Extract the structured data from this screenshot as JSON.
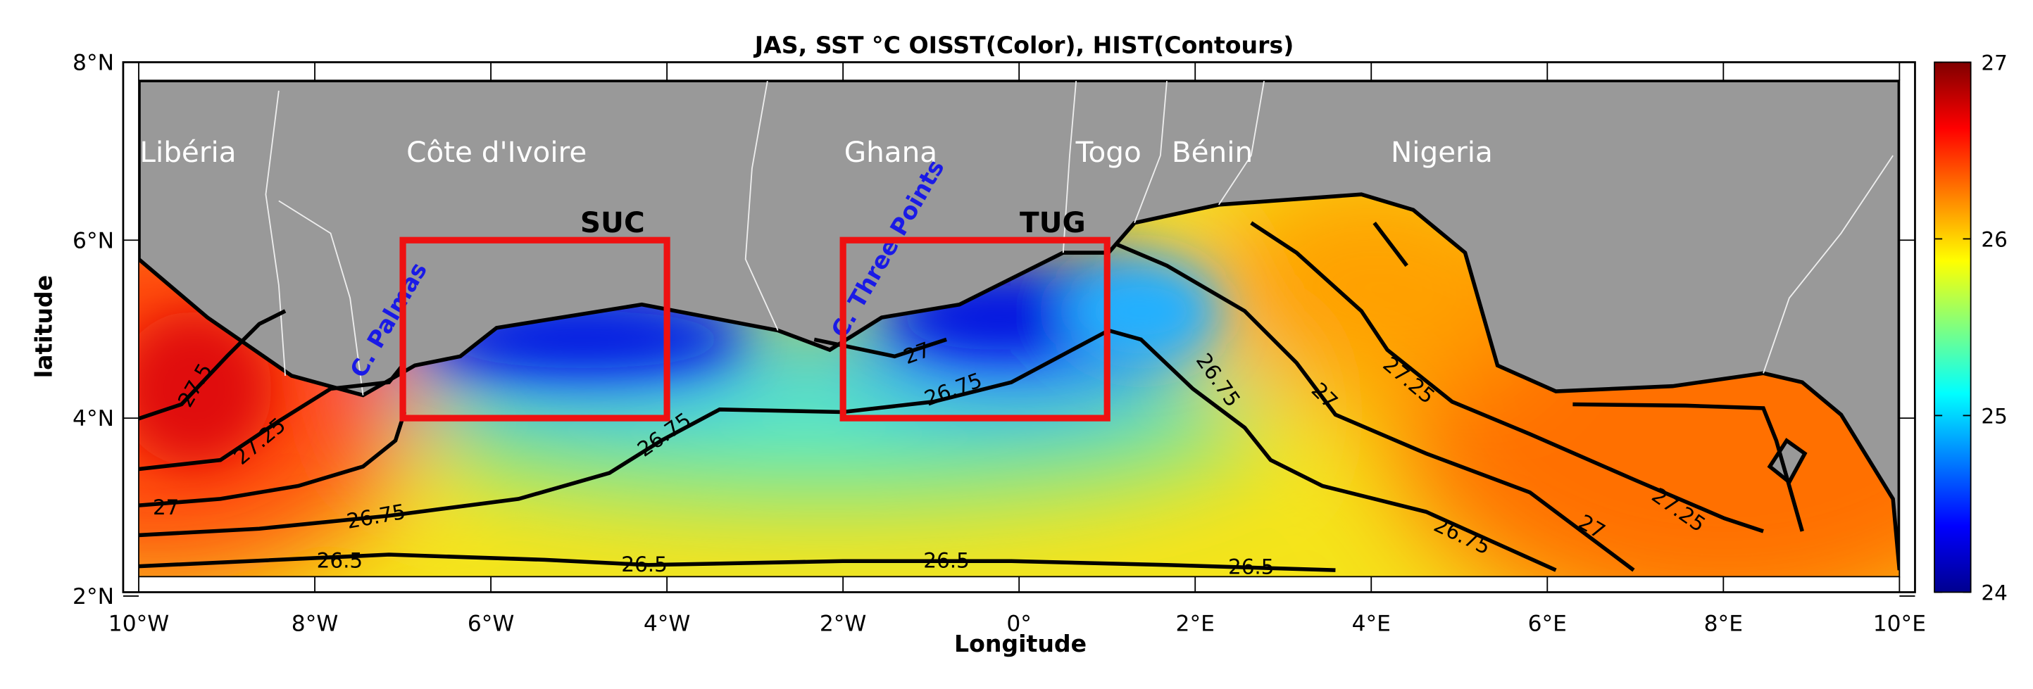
{
  "map": {
    "title": "JAS, SST °C OISST(Color), HIST(Contours)",
    "xlabel": "Longitude",
    "ylabel": "latitude",
    "xlim": [
      -10,
      10
    ],
    "ylim": [
      2,
      8
    ],
    "xticks": [
      {
        "value": -10,
        "label": "10°W"
      },
      {
        "value": -8,
        "label": "8°W"
      },
      {
        "value": -6,
        "label": "6°W"
      },
      {
        "value": -4,
        "label": "4°W"
      },
      {
        "value": -2,
        "label": "2°W"
      },
      {
        "value": 0,
        "label": "0°"
      },
      {
        "value": 2,
        "label": "2°E"
      },
      {
        "value": 4,
        "label": "4°E"
      },
      {
        "value": 6,
        "label": "6°E"
      },
      {
        "value": 8,
        "label": "8°E"
      },
      {
        "value": 10,
        "label": "10°E"
      }
    ],
    "yticks": [
      {
        "value": 2,
        "label": "2°N"
      },
      {
        "value": 4,
        "label": "4°N"
      },
      {
        "value": 6,
        "label": "6°N"
      },
      {
        "value": 8,
        "label": "8°N"
      }
    ],
    "colorbar": {
      "lim": [
        24,
        27
      ],
      "ticks": [
        24,
        25,
        26,
        27
      ]
    },
    "countries": [
      "Libéria",
      "Côte d'Ivoire",
      "Ghana",
      "Togo",
      "Bénin",
      "Nigeria"
    ],
    "capes": [
      "C. Palmas",
      "C. Three Points"
    ],
    "boxes": [
      {
        "label": "SUC",
        "lon": [
          -7,
          -4
        ],
        "lat": [
          4,
          6
        ]
      },
      {
        "label": "TUG",
        "lon": [
          -2,
          1
        ],
        "lat": [
          4,
          6
        ]
      }
    ],
    "contour_labels": [
      27.5,
      27.25,
      27,
      26.75,
      26.5,
      26.75,
      26.5,
      27,
      26.75,
      26.5,
      26.5,
      26.75,
      27,
      27.25,
      27.25,
      27,
      26.75
    ]
  }
}
